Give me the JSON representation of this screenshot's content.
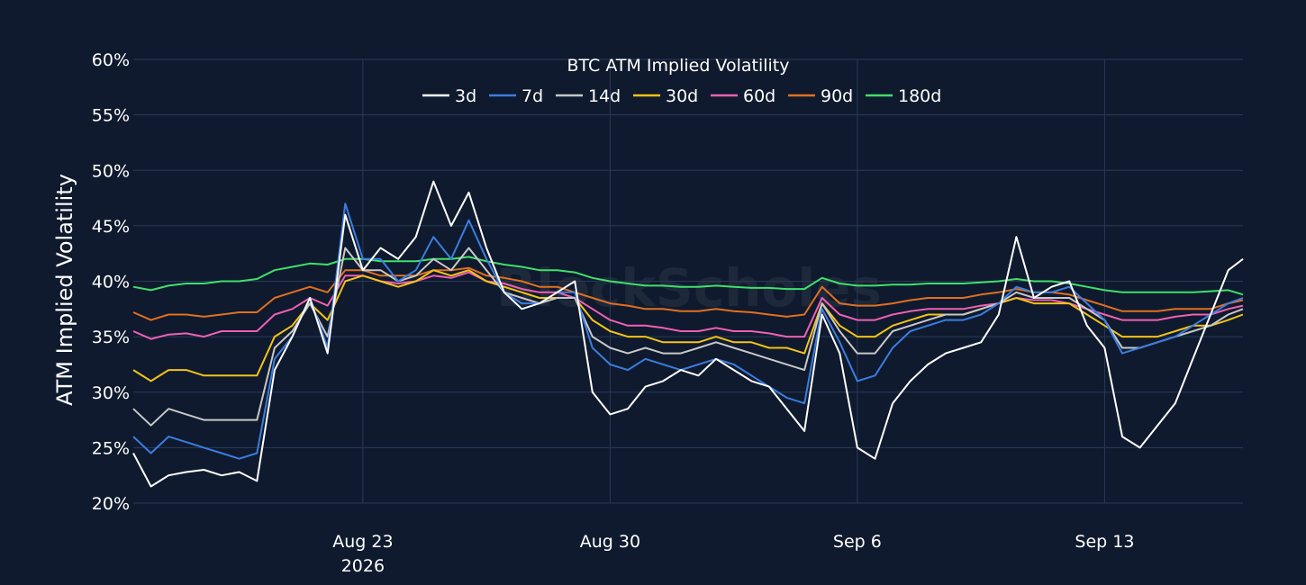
{
  "chart_data": {
    "type": "line",
    "title": "BTC ATM Implied Volatility",
    "ylabel": "ATM Implied Volatility",
    "xlabel": "",
    "watermark": "BlockScholes",
    "ylim": [
      20,
      60
    ],
    "yticks": [
      20,
      25,
      30,
      35,
      40,
      45,
      50,
      55,
      60
    ],
    "ytick_suffix": "%",
    "xlim": [
      "2026-08-16T12:00",
      "2026-09-16T22:00"
    ],
    "xticks": [
      {
        "date": "2026-08-23",
        "label": "Aug 23",
        "sublabel": "2026"
      },
      {
        "date": "2026-08-30",
        "label": "Aug 30",
        "sublabel": ""
      },
      {
        "date": "2026-09-06",
        "label": "Sep 6",
        "sublabel": ""
      },
      {
        "date": "2026-09-13",
        "label": "Sep 13",
        "sublabel": ""
      }
    ],
    "grid": true,
    "legend_position": "top-center",
    "x": [
      "2026-08-16T12:00",
      "2026-08-17",
      "2026-08-17T12:00",
      "2026-08-18",
      "2026-08-18T12:00",
      "2026-08-19",
      "2026-08-19T12:00",
      "2026-08-20",
      "2026-08-20T12:00",
      "2026-08-21",
      "2026-08-21T12:00",
      "2026-08-22",
      "2026-08-22T12:00",
      "2026-08-23",
      "2026-08-23T12:00",
      "2026-08-24",
      "2026-08-24T12:00",
      "2026-08-25",
      "2026-08-25T12:00",
      "2026-08-26",
      "2026-08-26T12:00",
      "2026-08-27",
      "2026-08-27T12:00",
      "2026-08-28",
      "2026-08-28T12:00",
      "2026-08-29",
      "2026-08-29T12:00",
      "2026-08-30",
      "2026-08-30T12:00",
      "2026-08-31",
      "2026-08-31T12:00",
      "2026-09-01",
      "2026-09-01T12:00",
      "2026-09-02",
      "2026-09-02T12:00",
      "2026-09-03",
      "2026-09-03T12:00",
      "2026-09-04",
      "2026-09-04T12:00",
      "2026-09-05",
      "2026-09-05T12:00",
      "2026-09-06",
      "2026-09-06T12:00",
      "2026-09-07",
      "2026-09-07T12:00",
      "2026-09-08",
      "2026-09-08T12:00",
      "2026-09-09",
      "2026-09-09T12:00",
      "2026-09-10",
      "2026-09-10T12:00",
      "2026-09-11",
      "2026-09-11T12:00",
      "2026-09-12",
      "2026-09-12T12:00",
      "2026-09-13",
      "2026-09-13T12:00",
      "2026-09-14",
      "2026-09-14T12:00",
      "2026-09-15",
      "2026-09-15T12:00",
      "2026-09-16",
      "2026-09-16T12:00",
      "2026-09-16T22:00"
    ],
    "series": [
      {
        "name": "3d",
        "color": "#ffffff",
        "values": [
          24.5,
          21.5,
          22.5,
          22.8,
          23.0,
          22.5,
          22.8,
          22.0,
          32.0,
          35.0,
          38.5,
          33.5,
          46.0,
          41.0,
          43.0,
          42.0,
          44.0,
          49.0,
          45.0,
          48.0,
          43.0,
          39.0,
          37.5,
          38.0,
          39.0,
          40.0,
          30.0,
          28.0,
          28.5,
          30.5,
          31.0,
          32.0,
          31.5,
          33.0,
          32.0,
          31.0,
          30.5,
          28.5,
          26.5,
          37.0,
          33.5,
          25.0,
          24.0,
          29.0,
          31.0,
          32.5,
          33.5,
          34.0,
          34.5,
          37.0,
          44.0,
          38.5,
          39.5,
          40.0,
          36.0,
          34.0,
          26.0,
          25.0,
          27.0,
          29.0,
          33.0,
          37.0,
          41.0,
          42.0
        ]
      },
      {
        "name": "7d",
        "color": "#3b7de0",
        "values": [
          26.0,
          24.5,
          26.0,
          25.5,
          25.0,
          24.5,
          24.0,
          24.5,
          33.0,
          35.0,
          38.5,
          34.0,
          47.0,
          42.0,
          42.0,
          40.0,
          41.0,
          44.0,
          42.0,
          45.5,
          42.0,
          39.0,
          38.0,
          38.0,
          39.0,
          39.0,
          34.0,
          32.5,
          32.0,
          33.0,
          32.5,
          32.0,
          32.5,
          33.0,
          32.5,
          31.5,
          30.5,
          29.5,
          29.0,
          37.5,
          34.5,
          31.0,
          31.5,
          34.0,
          35.5,
          36.0,
          36.5,
          36.5,
          37.0,
          38.0,
          39.5,
          39.0,
          39.0,
          39.5,
          38.0,
          36.5,
          33.5,
          34.0,
          34.5,
          35.0,
          36.0,
          37.0,
          38.0,
          38.5
        ]
      },
      {
        "name": "14d",
        "color": "#c8c8c8",
        "values": [
          28.5,
          27.0,
          28.5,
          28.0,
          27.5,
          27.5,
          27.5,
          27.5,
          34.0,
          35.5,
          38.0,
          35.0,
          43.0,
          41.0,
          41.0,
          40.0,
          40.5,
          42.0,
          41.0,
          43.0,
          41.0,
          39.0,
          38.5,
          38.0,
          38.5,
          38.5,
          35.0,
          34.0,
          33.5,
          34.0,
          33.5,
          33.5,
          34.0,
          34.5,
          34.0,
          33.5,
          33.0,
          32.5,
          32.0,
          38.0,
          35.5,
          33.5,
          33.5,
          35.5,
          36.0,
          36.5,
          37.0,
          37.0,
          37.5,
          38.0,
          39.0,
          38.5,
          38.5,
          38.5,
          37.5,
          36.5,
          34.0,
          34.0,
          34.5,
          35.0,
          35.5,
          36.0,
          37.0,
          37.5
        ]
      },
      {
        "name": "30d",
        "color": "#f2c318",
        "values": [
          32.0,
          31.0,
          32.0,
          32.0,
          31.5,
          31.5,
          31.5,
          31.5,
          35.0,
          36.0,
          38.0,
          36.5,
          40.0,
          40.5,
          40.0,
          39.5,
          40.0,
          41.0,
          40.5,
          41.0,
          40.0,
          39.5,
          39.0,
          38.5,
          38.5,
          38.5,
          36.5,
          35.5,
          35.0,
          35.0,
          34.5,
          34.5,
          34.5,
          35.0,
          34.5,
          34.5,
          34.0,
          34.0,
          33.5,
          38.0,
          36.0,
          35.0,
          35.0,
          36.0,
          36.5,
          37.0,
          37.0,
          37.0,
          37.5,
          38.0,
          38.5,
          38.0,
          38.0,
          38.0,
          37.0,
          36.0,
          35.0,
          35.0,
          35.0,
          35.5,
          36.0,
          36.0,
          36.5,
          37.0
        ]
      },
      {
        "name": "60d",
        "color": "#f060b0",
        "values": [
          35.5,
          34.8,
          35.2,
          35.3,
          35.0,
          35.5,
          35.5,
          35.5,
          37.0,
          37.5,
          38.5,
          37.8,
          40.5,
          40.5,
          40.0,
          39.8,
          40.0,
          40.5,
          40.3,
          40.8,
          40.0,
          39.8,
          39.3,
          39.0,
          39.0,
          38.5,
          37.5,
          36.5,
          36.0,
          36.0,
          35.8,
          35.5,
          35.5,
          35.8,
          35.5,
          35.5,
          35.3,
          35.0,
          35.0,
          38.5,
          37.0,
          36.5,
          36.5,
          37.0,
          37.3,
          37.5,
          37.5,
          37.5,
          37.8,
          38.0,
          38.5,
          38.3,
          38.3,
          38.0,
          37.5,
          37.0,
          36.5,
          36.5,
          36.5,
          36.8,
          37.0,
          37.0,
          37.5,
          37.8
        ]
      },
      {
        "name": "90d",
        "color": "#e07020",
        "values": [
          37.2,
          36.5,
          37.0,
          37.0,
          36.8,
          37.0,
          37.2,
          37.2,
          38.5,
          39.0,
          39.5,
          39.0,
          41.0,
          41.0,
          40.5,
          40.5,
          40.5,
          41.0,
          41.0,
          41.2,
          40.5,
          40.3,
          40.0,
          39.5,
          39.5,
          39.0,
          38.5,
          38.0,
          37.8,
          37.5,
          37.5,
          37.3,
          37.3,
          37.5,
          37.3,
          37.2,
          37.0,
          36.8,
          37.0,
          39.5,
          38.0,
          37.8,
          37.8,
          38.0,
          38.3,
          38.5,
          38.5,
          38.5,
          38.8,
          39.0,
          39.3,
          39.0,
          39.0,
          38.8,
          38.3,
          37.8,
          37.3,
          37.3,
          37.3,
          37.5,
          37.5,
          37.5,
          38.0,
          38.3
        ]
      },
      {
        "name": "180d",
        "color": "#3fe06a",
        "values": [
          39.5,
          39.2,
          39.6,
          39.8,
          39.8,
          40.0,
          40.0,
          40.2,
          41.0,
          41.3,
          41.6,
          41.5,
          42.0,
          42.0,
          41.8,
          41.8,
          41.8,
          42.0,
          42.0,
          42.2,
          41.8,
          41.5,
          41.3,
          41.0,
          41.0,
          40.8,
          40.3,
          40.0,
          39.8,
          39.6,
          39.6,
          39.5,
          39.5,
          39.6,
          39.5,
          39.4,
          39.4,
          39.3,
          39.3,
          40.3,
          39.8,
          39.6,
          39.6,
          39.7,
          39.7,
          39.8,
          39.8,
          39.8,
          39.9,
          40.0,
          40.2,
          40.0,
          40.0,
          39.8,
          39.5,
          39.2,
          39.0,
          39.0,
          39.0,
          39.0,
          39.0,
          39.1,
          39.2,
          38.8
        ]
      }
    ]
  }
}
